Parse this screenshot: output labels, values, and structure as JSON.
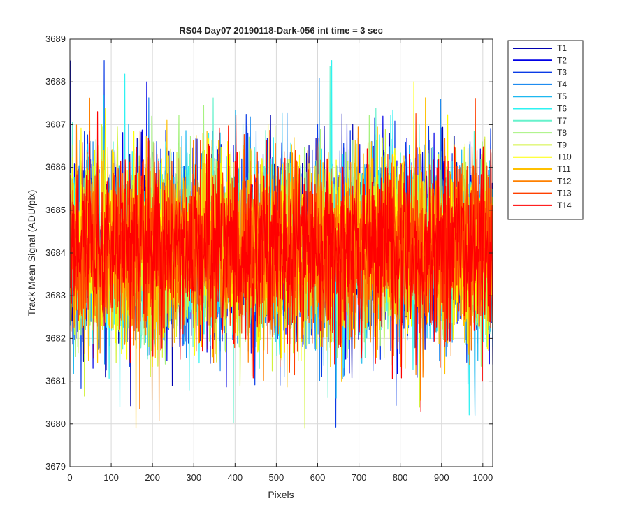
{
  "chart_data": {
    "type": "line",
    "title": "RS04 Day07 20190118-Dark-056 int time = 3 sec",
    "xlabel": "Pixels",
    "ylabel": "Track Mean Signal (ADU/pix)",
    "xlim": [
      0,
      1024
    ],
    "ylim": [
      3679,
      3689
    ],
    "xticks": [
      0,
      100,
      200,
      300,
      400,
      500,
      600,
      700,
      800,
      900,
      1000
    ],
    "yticks": [
      3679,
      3680,
      3681,
      3682,
      3683,
      3684,
      3685,
      3686,
      3687,
      3688,
      3689
    ],
    "grid": true,
    "legend_position": "outside-top-right",
    "x_range_per_series": [
      1,
      1024
    ],
    "noise_model": {
      "mean": 3684.1,
      "std": 1.05,
      "min": 3679.9,
      "max": 3688.5
    },
    "series": [
      {
        "name": "T1",
        "color": "#0000B0"
      },
      {
        "name": "T2",
        "color": "#0000E6"
      },
      {
        "name": "T3",
        "color": "#0A3CE6"
      },
      {
        "name": "T4",
        "color": "#1F8CF0"
      },
      {
        "name": "T5",
        "color": "#1EB8F0"
      },
      {
        "name": "T6",
        "color": "#2EF2F2"
      },
      {
        "name": "T7",
        "color": "#66F2CC"
      },
      {
        "name": "T8",
        "color": "#A6F27F"
      },
      {
        "name": "T9",
        "color": "#D2F23C"
      },
      {
        "name": "T10",
        "color": "#FFFF00"
      },
      {
        "name": "T11",
        "color": "#FFC000"
      },
      {
        "name": "T12",
        "color": "#FF8000"
      },
      {
        "name": "T13",
        "color": "#FF4000"
      },
      {
        "name": "T14",
        "color": "#FF0000"
      }
    ],
    "annotated_extremes": [
      {
        "series": "T1",
        "x": 1,
        "y": 3688.5
      },
      {
        "series": "T2",
        "x": 186,
        "y": 3688.0
      },
      {
        "series": "T6",
        "x": 634,
        "y": 3688.5
      },
      {
        "series": "T11",
        "x": 160,
        "y": 3679.9
      },
      {
        "series": "T14",
        "x": 850,
        "y": 3680.3
      },
      {
        "series": "T5",
        "x": 981,
        "y": 3680.2
      }
    ]
  }
}
